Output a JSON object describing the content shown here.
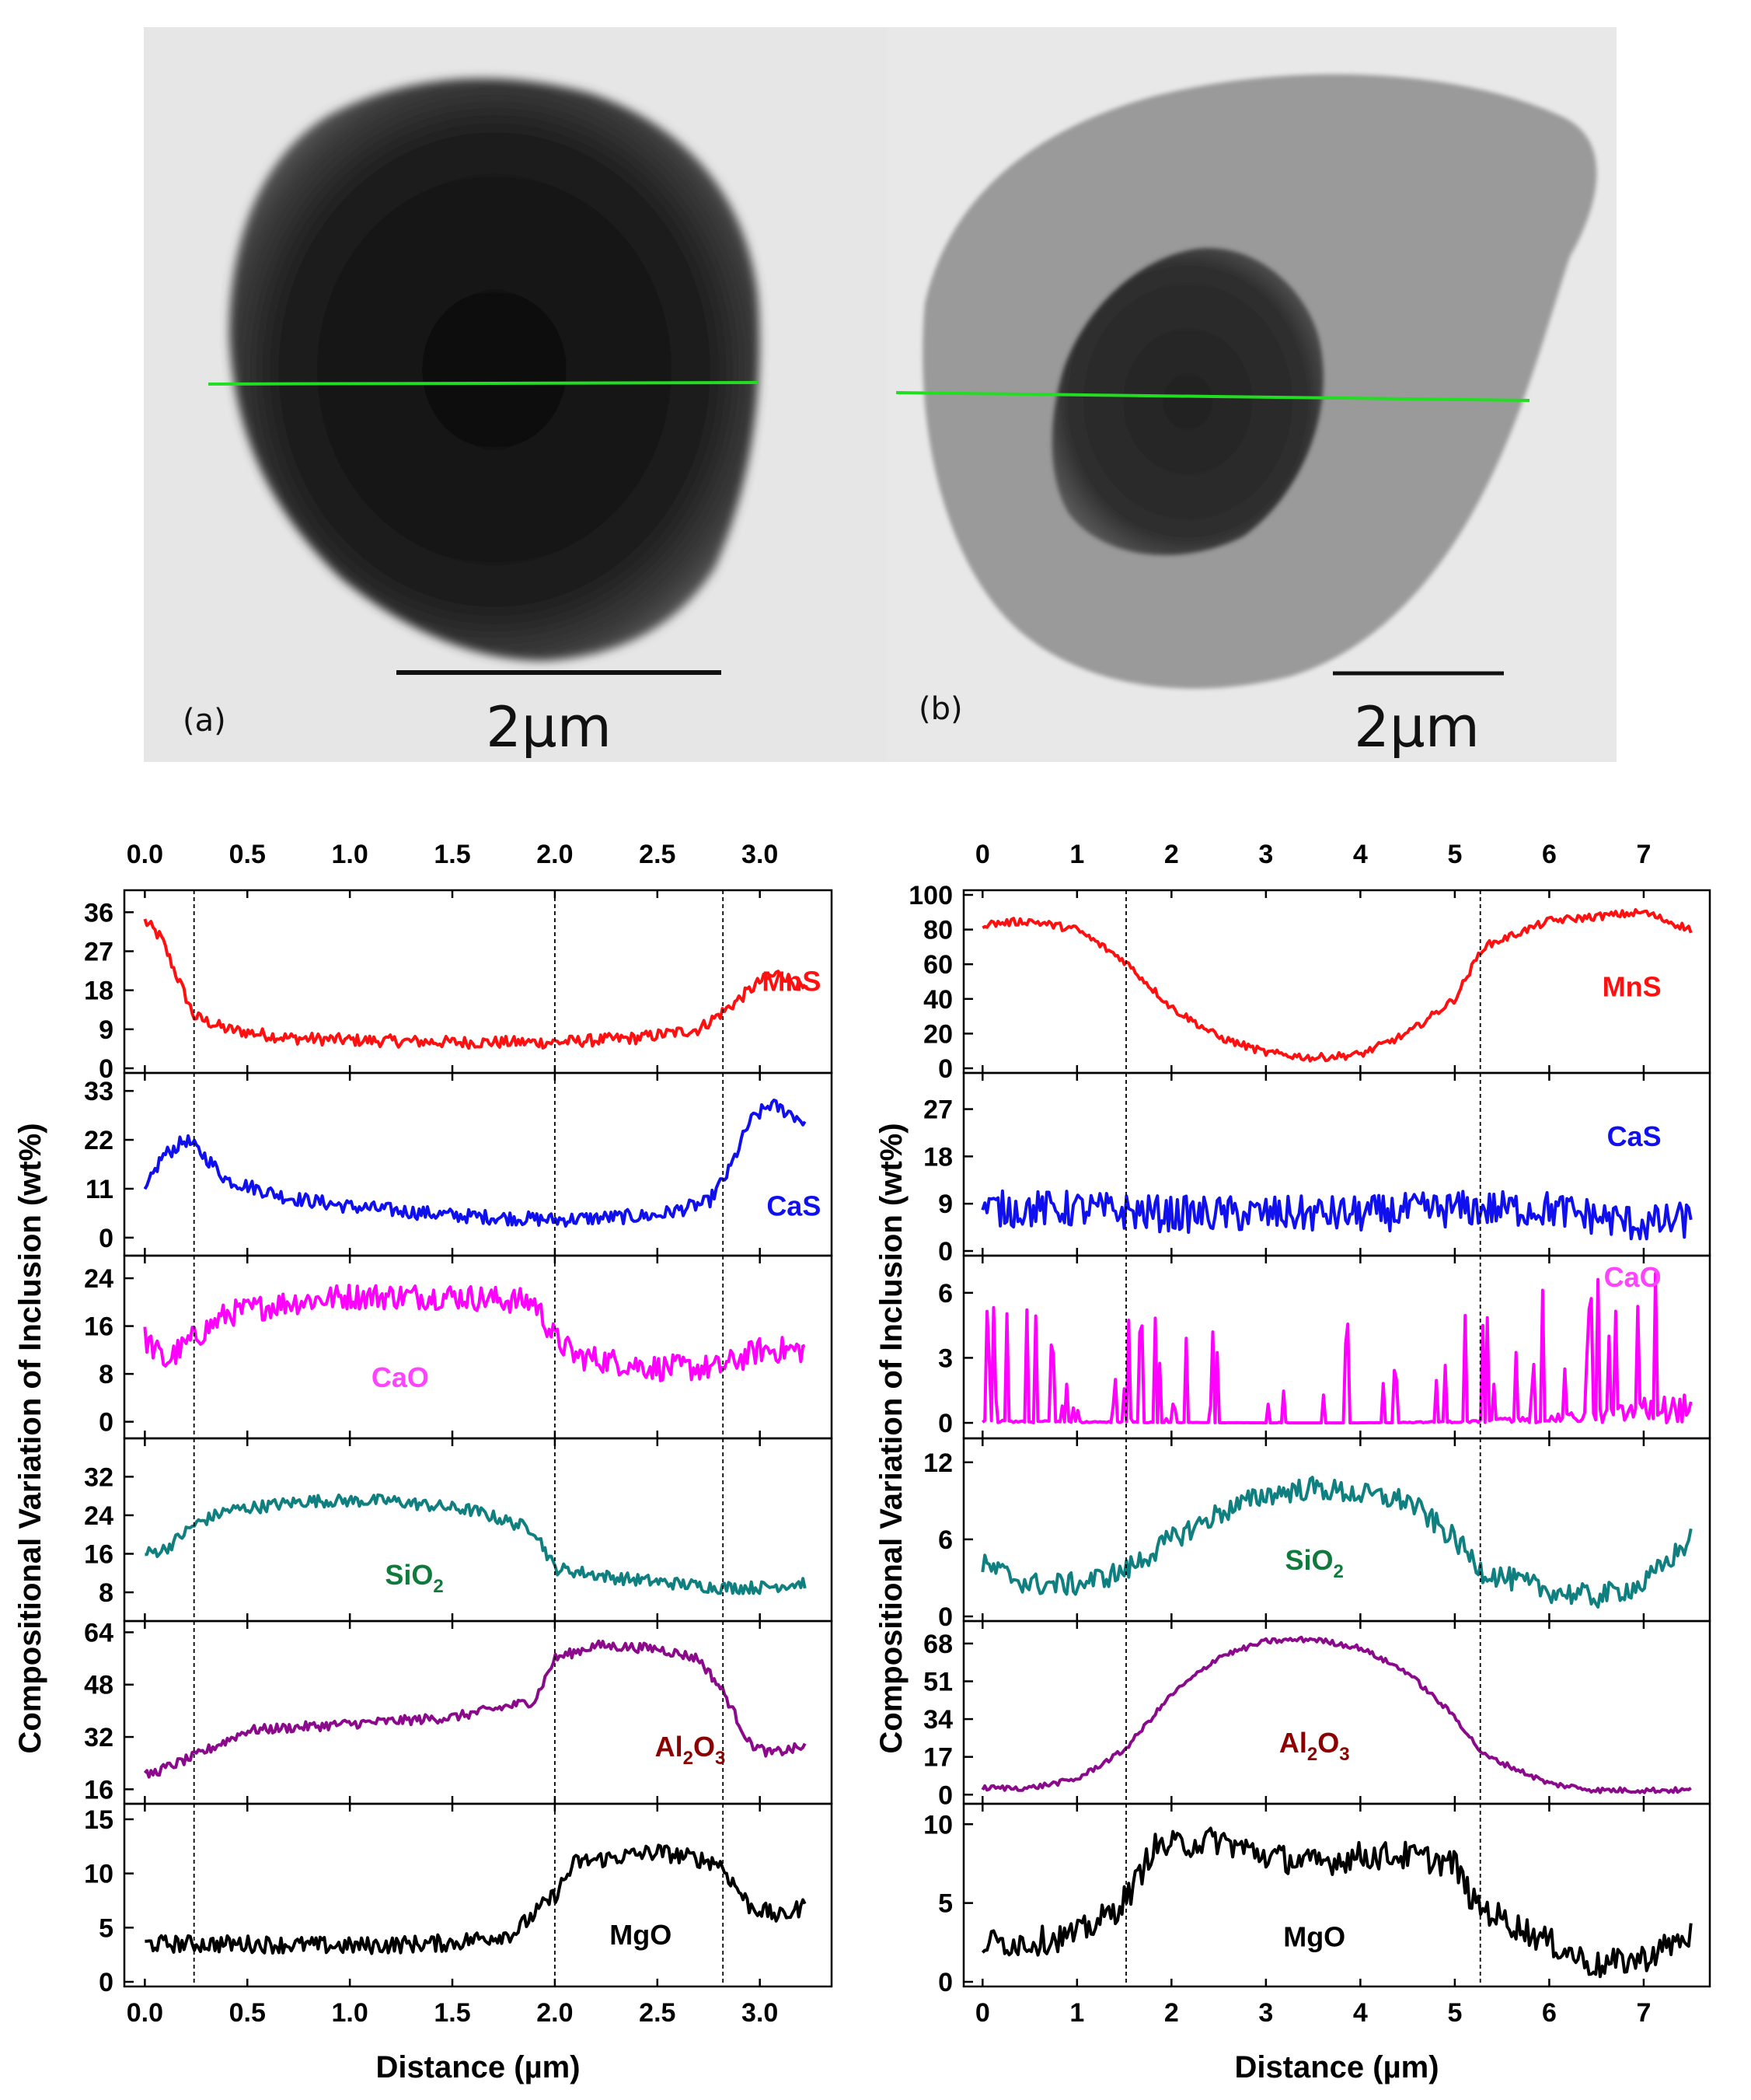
{
  "micrographs": [
    {
      "label": "(a)",
      "scale_text": "2µm"
    },
    {
      "label": "(b)",
      "scale_text": "2µm"
    }
  ],
  "colors": {
    "MnS": "#ff1010",
    "CaS": "#1010ee",
    "CaO": "#ff00ff",
    "SiO2": "#0f7f80",
    "Al2O3": "#8b0a8b",
    "MgO": "#000000",
    "line": "#22dd22"
  },
  "label_colors": {
    "MnS": "#ff1010",
    "CaS": "#1010ee",
    "CaO": "#ff44ff",
    "SiO2": "#107a3c",
    "Al2O3": "#8b0000",
    "MgO": "#000000"
  },
  "chart_data": [
    {
      "type": "line",
      "xlabel": "Distance (µm)",
      "ylabel": "Compositional Variation of Inclusion (wt%)",
      "xlim": [
        -0.1,
        3.35
      ],
      "xticks": [
        "0.0",
        "0.5",
        "1.0",
        "1.5",
        "2.0",
        "2.5",
        "3.0"
      ],
      "xtick_values": [
        0,
        0.5,
        1.0,
        1.5,
        2.0,
        2.5,
        3.0
      ],
      "boundaries": [
        0.24,
        2.0,
        2.82
      ],
      "x_max": 3.22,
      "series": [
        {
          "key": "MnS",
          "name": "MnS",
          "ylim": [
            0,
            40
          ],
          "yticks": [
            0,
            9,
            18,
            27,
            36
          ],
          "profile": [
            [
              0,
              34
            ],
            [
              0.08,
              30
            ],
            [
              0.15,
              22
            ],
            [
              0.24,
              12
            ],
            [
              0.4,
              9
            ],
            [
              0.7,
              7
            ],
            [
              1.0,
              6.5
            ],
            [
              1.5,
              6
            ],
            [
              2.0,
              6
            ],
            [
              2.4,
              7
            ],
            [
              2.7,
              9
            ],
            [
              2.82,
              13
            ],
            [
              2.9,
              16
            ],
            [
              3.0,
              20
            ],
            [
              3.1,
              22
            ],
            [
              3.22,
              18
            ]
          ],
          "noise": 1.4
        },
        {
          "key": "CaS",
          "name": "CaS",
          "ylim": [
            -3,
            36
          ],
          "yticks": [
            0,
            11,
            22,
            33
          ],
          "profile": [
            [
              0,
              10
            ],
            [
              0.08,
              18
            ],
            [
              0.2,
              22
            ],
            [
              0.3,
              18
            ],
            [
              0.4,
              13
            ],
            [
              0.7,
              9
            ],
            [
              1.0,
              7
            ],
            [
              1.5,
              5
            ],
            [
              2.0,
              4
            ],
            [
              2.5,
              5
            ],
            [
              2.75,
              8
            ],
            [
              2.85,
              15
            ],
            [
              2.95,
              26
            ],
            [
              3.05,
              30
            ],
            [
              3.15,
              28
            ],
            [
              3.22,
              26
            ]
          ],
          "noise": 1.6
        },
        {
          "key": "CaO",
          "name": "CaO",
          "ylim": [
            -2,
            27
          ],
          "yticks": [
            0,
            8,
            16,
            24
          ],
          "profile": [
            [
              0,
              14
            ],
            [
              0.1,
              10
            ],
            [
              0.24,
              14
            ],
            [
              0.4,
              18
            ],
            [
              0.7,
              20
            ],
            [
              1.0,
              21
            ],
            [
              1.5,
              21
            ],
            [
              1.9,
              20
            ],
            [
              2.0,
              14
            ],
            [
              2.1,
              11
            ],
            [
              2.5,
              9
            ],
            [
              2.8,
              9
            ],
            [
              3.0,
              12
            ],
            [
              3.22,
              12
            ]
          ],
          "noise": 2.2
        },
        {
          "key": "SiO2",
          "name": "SiO",
          "sub": "2",
          "ylim": [
            3,
            39
          ],
          "yticks": [
            8,
            16,
            24,
            32
          ],
          "profile": [
            [
              0,
              16
            ],
            [
              0.1,
              17
            ],
            [
              0.24,
              22
            ],
            [
              0.4,
              25
            ],
            [
              0.8,
              27
            ],
            [
              1.2,
              27
            ],
            [
              1.6,
              25
            ],
            [
              1.9,
              21
            ],
            [
              2.0,
              13
            ],
            [
              2.3,
              11
            ],
            [
              2.8,
              9
            ],
            [
              3.0,
              9
            ],
            [
              3.22,
              10
            ]
          ],
          "noise": 1.3
        },
        {
          "key": "Al2O3",
          "name": "Al",
          "sub": "2",
          "name2": "O",
          "sub2": "3",
          "ylim": [
            13,
            66
          ],
          "yticks": [
            16,
            32,
            48,
            64
          ],
          "profile": [
            [
              0,
              20
            ],
            [
              0.24,
              26
            ],
            [
              0.5,
              34
            ],
            [
              1.0,
              36
            ],
            [
              1.5,
              38
            ],
            [
              1.9,
              43
            ],
            [
              2.0,
              56
            ],
            [
              2.2,
              60
            ],
            [
              2.5,
              59
            ],
            [
              2.7,
              56
            ],
            [
              2.82,
              46
            ],
            [
              2.95,
              30
            ],
            [
              3.05,
              27
            ],
            [
              3.22,
              29
            ]
          ],
          "noise": 1.5
        },
        {
          "key": "MgO",
          "name": "MgO",
          "ylim": [
            0,
            16
          ],
          "yticks": [
            0,
            5,
            10,
            15
          ],
          "profile": [
            [
              0,
              3.5
            ],
            [
              0.5,
              3.5
            ],
            [
              1.0,
              3.3
            ],
            [
              1.5,
              3.6
            ],
            [
              1.8,
              4.5
            ],
            [
              2.0,
              8
            ],
            [
              2.1,
              11
            ],
            [
              2.5,
              12
            ],
            [
              2.8,
              11
            ],
            [
              2.95,
              7
            ],
            [
              3.1,
              6
            ],
            [
              3.22,
              7
            ]
          ],
          "noise": 0.8
        }
      ]
    },
    {
      "type": "line",
      "xlabel": "Distance (µm)",
      "ylabel": "Compositional Variation of Inclusion (wt%)",
      "xlim": [
        -0.2,
        7.7
      ],
      "xticks": [
        "0",
        "1",
        "2",
        "3",
        "4",
        "5",
        "6",
        "7"
      ],
      "xtick_values": [
        0,
        1,
        2,
        3,
        4,
        5,
        6,
        7
      ],
      "boundaries": [
        1.52,
        5.27
      ],
      "x_max": 7.5,
      "series": [
        {
          "key": "MnS",
          "name": "MnS",
          "ylim": [
            0,
            100
          ],
          "yticks": [
            0,
            20,
            40,
            60,
            80,
            100
          ],
          "profile": [
            [
              0,
              83
            ],
            [
              0.5,
              85
            ],
            [
              1.0,
              80
            ],
            [
              1.5,
              62
            ],
            [
              2.0,
              35
            ],
            [
              2.5,
              18
            ],
            [
              3.0,
              9
            ],
            [
              3.5,
              6
            ],
            [
              4.0,
              8
            ],
            [
              4.5,
              20
            ],
            [
              5.0,
              40
            ],
            [
              5.3,
              70
            ],
            [
              6.0,
              85
            ],
            [
              7.0,
              90
            ],
            [
              7.5,
              80
            ]
          ],
          "noise": 2.2
        },
        {
          "key": "CaS",
          "name": "CaS",
          "ylim": [
            0,
            33
          ],
          "yticks": [
            0,
            9,
            18,
            27
          ],
          "profile": [
            [
              0,
              8
            ],
            [
              1.0,
              8
            ],
            [
              2.0,
              7
            ],
            [
              3.0,
              7
            ],
            [
              4.0,
              7
            ],
            [
              5.0,
              8
            ],
            [
              6.0,
              8
            ],
            [
              7.0,
              5
            ],
            [
              7.5,
              6
            ]
          ],
          "noise": 3.5
        },
        {
          "key": "CaO",
          "name": "CaO",
          "ylim": [
            -0.5,
            7.5
          ],
          "yticks": [
            0,
            3,
            6
          ],
          "profile": [
            [
              0,
              0.5
            ],
            [
              1.0,
              0.3
            ],
            [
              2.0,
              0.1
            ],
            [
              3.0,
              0
            ],
            [
              4.0,
              0
            ],
            [
              5.0,
              0.3
            ],
            [
              6.0,
              1.2
            ],
            [
              6.7,
              2.5
            ],
            [
              7.0,
              4
            ],
            [
              7.5,
              4.5
            ]
          ],
          "noise": 1.5,
          "spiky": true
        },
        {
          "key": "SiO2",
          "name": "SiO",
          "sub": "2",
          "ylim": [
            0,
            13.5
          ],
          "yticks": [
            0,
            6,
            12
          ],
          "profile": [
            [
              0,
              4
            ],
            [
              0.5,
              2.5
            ],
            [
              1.0,
              2.5
            ],
            [
              1.5,
              3.5
            ],
            [
              2.0,
              6
            ],
            [
              2.5,
              8
            ],
            [
              3.0,
              9.5
            ],
            [
              3.5,
              10
            ],
            [
              4.0,
              9.5
            ],
            [
              4.5,
              9
            ],
            [
              5.0,
              6
            ],
            [
              5.3,
              3.5
            ],
            [
              6.0,
              2
            ],
            [
              6.5,
              1.5
            ],
            [
              7.0,
              2.5
            ],
            [
              7.5,
              6
            ]
          ],
          "noise": 0.9
        },
        {
          "key": "Al2O3",
          "name": "Al",
          "sub": "2",
          "name2": "O",
          "sub2": "3",
          "ylim": [
            -2,
            76
          ],
          "yticks": [
            0,
            17,
            34,
            51,
            68
          ],
          "profile": [
            [
              0,
              3
            ],
            [
              0.5,
              3
            ],
            [
              1.0,
              7
            ],
            [
              1.5,
              20
            ],
            [
              2.0,
              45
            ],
            [
              2.5,
              62
            ],
            [
              3.0,
              69
            ],
            [
              3.5,
              70
            ],
            [
              4.0,
              66
            ],
            [
              4.5,
              55
            ],
            [
              5.0,
              35
            ],
            [
              5.3,
              18
            ],
            [
              6.0,
              5
            ],
            [
              6.5,
              2
            ],
            [
              7.5,
              2
            ]
          ],
          "noise": 1.2
        },
        {
          "key": "MgO",
          "name": "MgO",
          "ylim": [
            0,
            11
          ],
          "yticks": [
            0,
            5,
            10
          ],
          "profile": [
            [
              0,
              2.5
            ],
            [
              0.5,
              2.5
            ],
            [
              1.0,
              3
            ],
            [
              1.4,
              4.5
            ],
            [
              1.6,
              6
            ],
            [
              1.8,
              8.5
            ],
            [
              2.5,
              9
            ],
            [
              3.0,
              8
            ],
            [
              3.5,
              7.5
            ],
            [
              4.0,
              8
            ],
            [
              4.5,
              8
            ],
            [
              5.0,
              7.5
            ],
            [
              5.2,
              5
            ],
            [
              5.5,
              4
            ],
            [
              6.0,
              2.5
            ],
            [
              6.5,
              1
            ],
            [
              7.0,
              1.5
            ],
            [
              7.5,
              3
            ]
          ],
          "noise": 0.9
        }
      ]
    }
  ]
}
